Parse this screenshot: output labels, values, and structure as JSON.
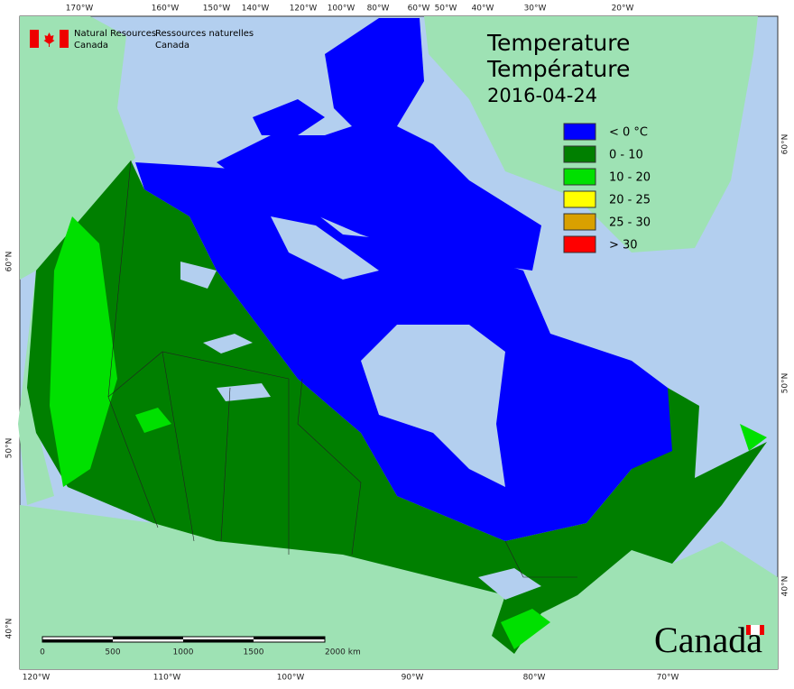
{
  "agency": {
    "en": [
      "Natural Resources",
      "Canada"
    ],
    "fr": [
      "Ressources naturelles",
      "Canada"
    ]
  },
  "title": [
    "Temperature",
    "Température"
  ],
  "date": "2016-04-24",
  "legend": [
    {
      "label": "< 0 °C",
      "color": "#0000ff"
    },
    {
      "label": "0 - 10",
      "color": "#007f00"
    },
    {
      "label": "10 - 20",
      "color": "#00e000"
    },
    {
      "label": "20 - 25",
      "color": "#ffff00"
    },
    {
      "label": "25 - 30",
      "color": "#d9a000"
    },
    {
      "label": "> 30",
      "color": "#ff0000"
    }
  ],
  "graticule": {
    "top": [
      "170°W",
      "160°W",
      "150°W",
      "140°W",
      "120°W",
      "100°W",
      "80°W",
      "60°W",
      "50°W",
      "40°W",
      "30°W",
      "20°W"
    ],
    "bottom": [
      "120°W",
      "110°W",
      "100°W",
      "90°W",
      "80°W",
      "70°W"
    ],
    "left": [
      "60°N",
      "50°N",
      "40°N"
    ],
    "right": [
      "60°N",
      "50°N",
      "40°N"
    ]
  },
  "scale_bar": [
    "0",
    "500",
    "1000",
    "1500",
    "2000 km"
  ],
  "wordmark": "Canada"
}
